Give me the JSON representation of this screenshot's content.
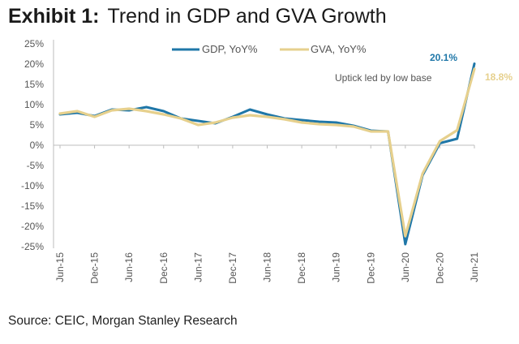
{
  "title_prefix": "Exhibit 1:",
  "title_text": "Trend in GDP and GVA Growth",
  "source": "Source: CEIC, Morgan Stanley Research",
  "colors": {
    "gdp": "#1f77a8",
    "gva": "#e6d08d",
    "axis": "#bdbdbd"
  },
  "chart_data": {
    "type": "line",
    "title": "Trend in GDP and GVA Growth",
    "xlabel": "",
    "ylabel": "",
    "ylim": [
      -25,
      25
    ],
    "yticks": [
      "25%",
      "20%",
      "15%",
      "10%",
      "5%",
      "0%",
      "-5%",
      "-10%",
      "-15%",
      "-20%",
      "-25%"
    ],
    "xticks": [
      "Jun-15",
      "Dec-15",
      "Jun-16",
      "Dec-16",
      "Jun-17",
      "Dec-17",
      "Jun-18",
      "Dec-18",
      "Jun-19",
      "Dec-19",
      "Jun-20",
      "Dec-20",
      "Jun-21"
    ],
    "x": [
      "Jun-15",
      "Sep-15",
      "Dec-15",
      "Mar-16",
      "Jun-16",
      "Sep-16",
      "Dec-16",
      "Mar-17",
      "Jun-17",
      "Sep-17",
      "Dec-17",
      "Mar-18",
      "Jun-18",
      "Sep-18",
      "Dec-18",
      "Mar-19",
      "Jun-19",
      "Sep-19",
      "Dec-19",
      "Mar-20",
      "Jun-20",
      "Sep-20",
      "Dec-20",
      "Mar-21",
      "Jun-21"
    ],
    "series": [
      {
        "name": "GDP, YoY%",
        "values": [
          7.6,
          8.0,
          7.2,
          8.8,
          8.6,
          9.4,
          8.4,
          6.6,
          6.0,
          5.4,
          7.0,
          8.8,
          7.6,
          6.6,
          6.2,
          5.8,
          5.6,
          4.8,
          3.6,
          3.4,
          -24.4,
          -7.4,
          0.5,
          1.6,
          20.1
        ]
      },
      {
        "name": "GVA, YoY%",
        "values": [
          7.8,
          8.4,
          7.0,
          8.6,
          9.0,
          8.4,
          7.6,
          6.6,
          5.0,
          5.6,
          6.8,
          7.4,
          7.0,
          6.4,
          5.6,
          5.2,
          5.0,
          4.6,
          3.4,
          3.4,
          -22.4,
          -7.0,
          1.0,
          3.7,
          18.8
        ]
      }
    ],
    "data_labels": [
      {
        "series": "GDP, YoY%",
        "text": "20.1%"
      },
      {
        "series": "GVA, YoY%",
        "text": "18.8%"
      }
    ],
    "annotation": "Uptick led by low base",
    "legend_placement": "top-center",
    "grid": false
  }
}
